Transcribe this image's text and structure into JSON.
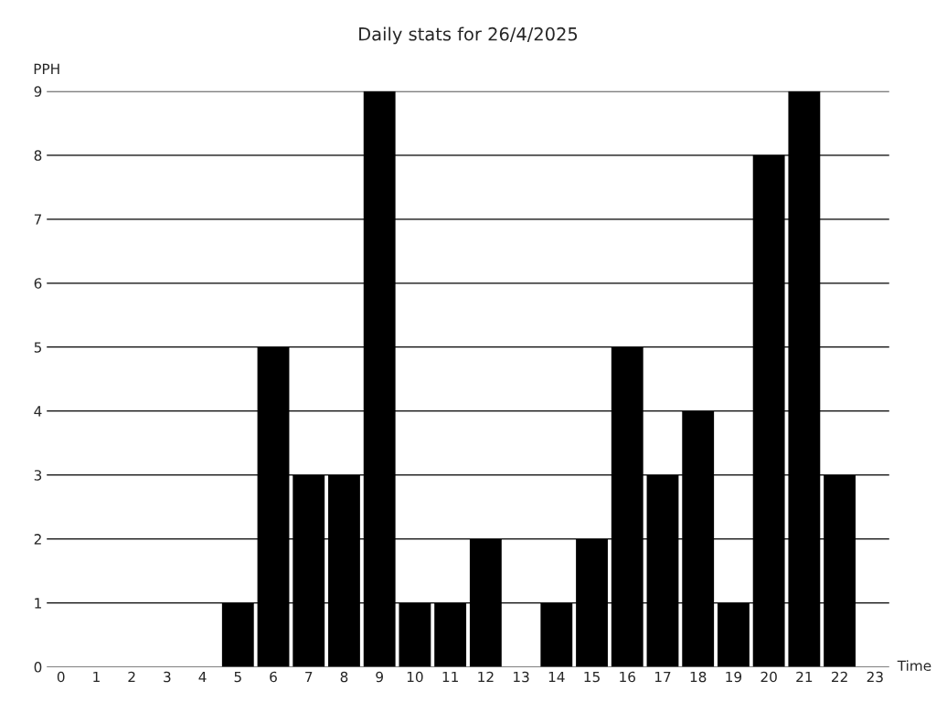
{
  "chart_data": {
    "type": "bar",
    "title": "Daily stats for 26/4/2025",
    "xlabel": "Time",
    "ylabel": "PPH",
    "categories": [
      "0",
      "1",
      "2",
      "3",
      "4",
      "5",
      "6",
      "7",
      "8",
      "9",
      "10",
      "11",
      "12",
      "13",
      "14",
      "15",
      "16",
      "17",
      "18",
      "19",
      "20",
      "21",
      "22",
      "23"
    ],
    "values": [
      0,
      0,
      0,
      0,
      0,
      1,
      5,
      3,
      3,
      9,
      1,
      1,
      2,
      0,
      1,
      2,
      5,
      3,
      4,
      1,
      8,
      9,
      3,
      0
    ],
    "color": "#000000",
    "ylim": [
      0,
      9
    ],
    "yticks": [
      0,
      1,
      2,
      3,
      4,
      5,
      6,
      7,
      8,
      9
    ],
    "grid": "y"
  }
}
